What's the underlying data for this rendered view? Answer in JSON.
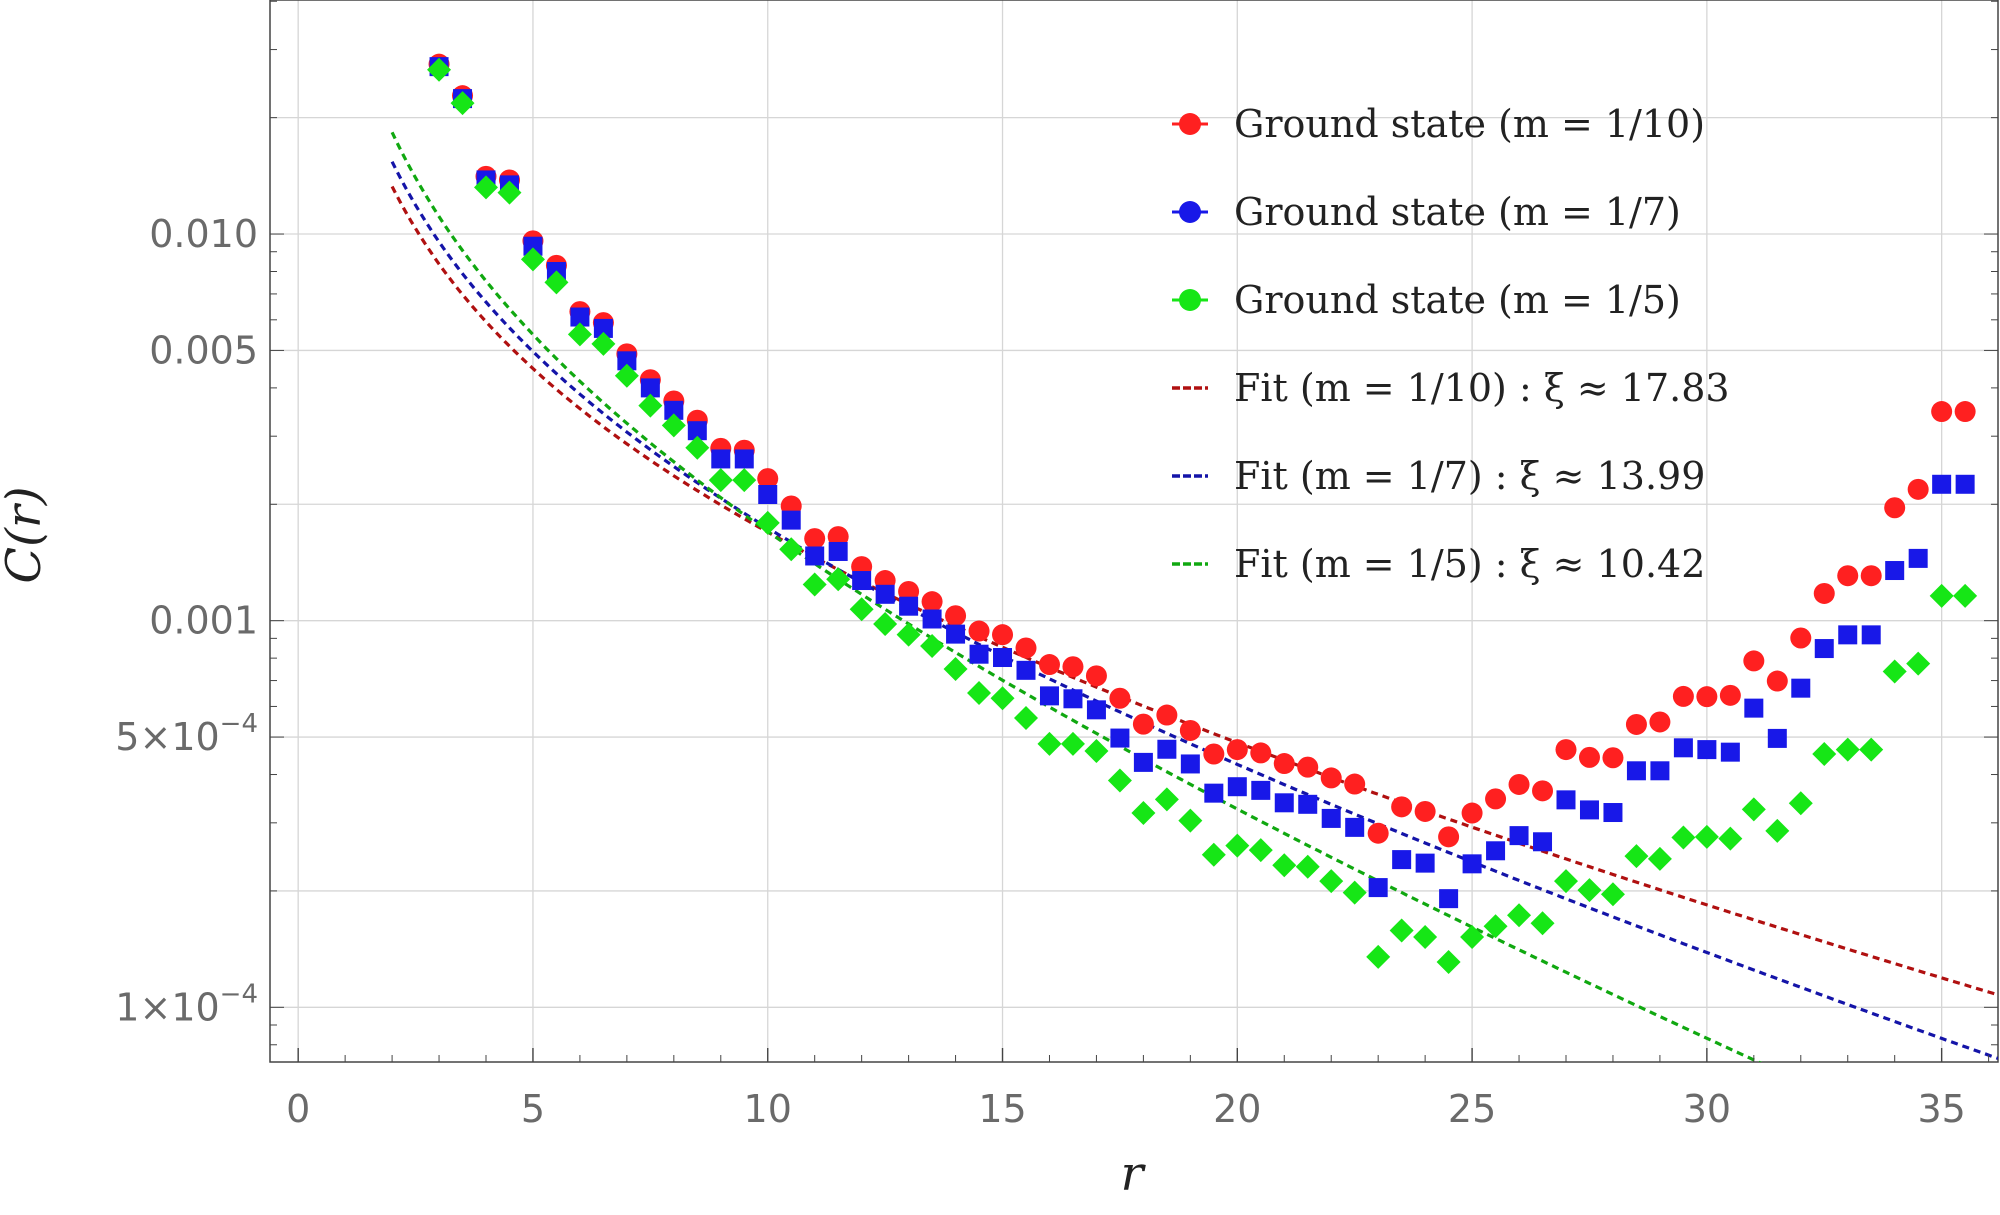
{
  "chart_data": {
    "type": "scatter",
    "title": "",
    "xlabel": "r",
    "ylabel": "C(r)",
    "xlim": [
      -0.6,
      36.2
    ],
    "ylim": [
      7.22e-05,
      0.0403
    ],
    "yscale": "log",
    "grid": true,
    "legend_position": "top-right",
    "x_ticks": [
      {
        "value": 0,
        "label": "0"
      },
      {
        "value": 5,
        "label": "5"
      },
      {
        "value": 10,
        "label": "10"
      },
      {
        "value": 15,
        "label": "15"
      },
      {
        "value": 20,
        "label": "20"
      },
      {
        "value": 25,
        "label": "25"
      },
      {
        "value": 30,
        "label": "30"
      },
      {
        "value": 35,
        "label": "35"
      }
    ],
    "y_ticks": [
      {
        "value": 0.01,
        "label": "0.010"
      },
      {
        "value": 0.005,
        "label": "0.005"
      },
      {
        "value": 0.001,
        "label": "0.001"
      },
      {
        "value": 0.0005,
        "label": "5×10",
        "exp": "−4"
      },
      {
        "value": 0.0001,
        "label": "1×10",
        "exp": "−4"
      }
    ],
    "series": [
      {
        "name": "Ground state (m = 1/10)",
        "legend_label": "Ground state (m = 1/10)",
        "marker": "circle",
        "color": "#ff2020",
        "x": [
          3.0,
          3.5,
          4.0,
          4.5,
          5.0,
          5.5,
          6.0,
          6.5,
          7.0,
          7.5,
          8.0,
          8.5,
          9.0,
          9.5,
          10.0,
          10.5,
          11.0,
          11.5,
          12.0,
          12.5,
          13.0,
          13.5,
          14.0,
          14.5,
          15.0,
          15.5,
          16.0,
          16.5,
          17.0,
          17.5,
          18.0,
          18.5,
          19.0,
          19.5,
          20.0,
          20.5,
          21.0,
          21.5,
          22.0,
          22.5,
          23.0,
          23.5,
          24.0,
          24.5,
          25.0,
          25.5,
          26.0,
          26.5,
          27.0,
          27.5,
          28.0,
          28.5,
          29.0,
          29.5,
          30.0,
          30.5,
          31.0,
          31.5,
          32.0,
          32.5,
          33.0,
          33.5,
          34.0,
          34.5,
          35.0,
          35.5
        ],
        "y": [
          0.0275,
          0.0228,
          0.0141,
          0.0138,
          0.0096,
          0.0083,
          0.0063,
          0.0059,
          0.0049,
          0.0042,
          0.0037,
          0.0033,
          0.00279,
          0.00276,
          0.00233,
          0.00198,
          0.00163,
          0.00165,
          0.00138,
          0.00127,
          0.00119,
          0.00112,
          0.00103,
          0.00094,
          0.00092,
          0.00085,
          0.00077,
          0.00076,
          0.00072,
          0.00063,
          0.00054,
          0.00057,
          0.00052,
          0.000452,
          0.000464,
          0.000455,
          0.000427,
          0.000418,
          0.000392,
          0.000378,
          0.000282,
          0.00033,
          0.000321,
          0.000276,
          0.000318,
          0.000346,
          0.000377,
          0.000363,
          0.000464,
          0.000443,
          0.000442,
          0.000539,
          0.000547,
          0.000637,
          0.000636,
          0.000641,
          0.000787,
          0.000698,
          0.000902,
          0.001176,
          0.001307,
          0.001307,
          0.001959,
          0.002186,
          0.003475,
          0.003475
        ]
      },
      {
        "name": "Ground state (m = 1/7)",
        "legend_label": "Ground state (m = 1/7)",
        "marker": "square",
        "color": "#1818e8",
        "x": [
          3.0,
          3.5,
          4.0,
          4.5,
          5.0,
          5.5,
          6.0,
          6.5,
          7.0,
          7.5,
          8.0,
          8.5,
          9.0,
          9.5,
          10.0,
          10.5,
          11.0,
          11.5,
          12.0,
          12.5,
          13.0,
          13.5,
          14.0,
          14.5,
          15.0,
          15.5,
          16.0,
          16.5,
          17.0,
          17.5,
          18.0,
          18.5,
          19.0,
          19.5,
          20.0,
          20.5,
          21.0,
          21.5,
          22.0,
          22.5,
          23.0,
          23.5,
          24.0,
          24.5,
          25.0,
          25.5,
          26.0,
          26.5,
          27.0,
          27.5,
          28.0,
          28.5,
          29.0,
          29.5,
          30.0,
          30.5,
          31.0,
          31.5,
          32.0,
          32.5,
          33.0,
          33.5,
          34.0,
          34.5,
          35.0,
          35.5
        ],
        "y": [
          0.0271,
          0.0224,
          0.0138,
          0.0134,
          0.0093,
          0.008,
          0.0061,
          0.0057,
          0.0047,
          0.004,
          0.0035,
          0.0031,
          0.00262,
          0.00262,
          0.00212,
          0.00182,
          0.00147,
          0.00151,
          0.00127,
          0.00117,
          0.00109,
          0.00101,
          0.000923,
          0.000819,
          0.000803,
          0.000744,
          0.000639,
          0.000628,
          0.000588,
          0.000497,
          0.00043,
          0.000465,
          0.000426,
          0.000358,
          0.000372,
          0.000364,
          0.000338,
          0.000335,
          0.000308,
          0.000292,
          0.000204,
          0.000241,
          0.000236,
          0.000191,
          0.000235,
          0.000254,
          0.000278,
          0.000268,
          0.000344,
          0.000324,
          0.000319,
          0.000409,
          0.000409,
          0.000469,
          0.000464,
          0.000457,
          0.000594,
          0.000496,
          0.000669,
          0.000847,
          0.000919,
          0.000919,
          0.001348,
          0.001449,
          0.002253,
          0.002253
        ]
      },
      {
        "name": "Ground state (m = 1/5)",
        "legend_label": "Ground state (m = 1/5)",
        "marker": "diamond",
        "color": "#16e616",
        "x": [
          3.0,
          3.5,
          4.0,
          4.5,
          5.0,
          5.5,
          6.0,
          6.5,
          7.0,
          7.5,
          8.0,
          8.5,
          9.0,
          9.5,
          10.0,
          10.5,
          11.0,
          11.5,
          12.0,
          12.5,
          13.0,
          13.5,
          14.0,
          14.5,
          15.0,
          15.5,
          16.0,
          16.5,
          17.0,
          17.5,
          18.0,
          18.5,
          19.0,
          19.5,
          20.0,
          20.5,
          21.0,
          21.5,
          22.0,
          22.5,
          23.0,
          23.5,
          24.0,
          24.5,
          25.0,
          25.5,
          26.0,
          26.5,
          27.0,
          27.5,
          28.0,
          28.5,
          29.0,
          29.5,
          30.0,
          30.5,
          31.0,
          31.5,
          32.0,
          32.5,
          33.0,
          33.5,
          34.0,
          34.5,
          35.0,
          35.5
        ],
        "y": [
          0.0266,
          0.0218,
          0.0132,
          0.0128,
          0.0086,
          0.0075,
          0.0055,
          0.0052,
          0.0043,
          0.0036,
          0.0032,
          0.0028,
          0.00231,
          0.00231,
          0.00179,
          0.00153,
          0.00124,
          0.00128,
          0.00107,
          0.00098,
          0.00092,
          0.00086,
          0.00075,
          0.00065,
          0.00063,
          0.00056,
          0.00048,
          0.00048,
          0.00046,
          0.000386,
          0.000318,
          0.000345,
          0.000304,
          0.000248,
          0.000262,
          0.000255,
          0.000233,
          0.000231,
          0.000212,
          0.000198,
          0.000135,
          0.000158,
          0.000152,
          0.000131,
          0.000152,
          0.000162,
          0.000173,
          0.000165,
          0.000212,
          0.000201,
          0.000196,
          0.000246,
          0.000242,
          0.000275,
          0.000276,
          0.000273,
          0.000325,
          0.000286,
          0.000337,
          0.000452,
          0.000464,
          0.000464,
          0.000739,
          0.000774,
          0.001159,
          0.001159
        ]
      }
    ],
    "fits": [
      {
        "name": "Fit (m = 1/10)",
        "legend_label": "Fit (m = 1/10) :  ξ ≈ 17.83",
        "xi": 17.83,
        "color": "#b01010",
        "A": 0.0297,
        "x_start": 2.0,
        "x_end": 36.2
      },
      {
        "name": "Fit (m = 1/7)",
        "legend_label": "Fit (m = 1/7) :  ξ ≈ 13.99",
        "xi": 13.99,
        "color": "#1414a8",
        "A": 0.0355,
        "x_start": 2.0,
        "x_end": 36.2
      },
      {
        "name": "Fit (m = 1/5)",
        "legend_label": "Fit (m = 1/5) :  ξ ≈ 10.42",
        "xi": 10.42,
        "color": "#10a810",
        "A": 0.0444,
        "x_start": 2.0,
        "x_end": 36.2
      }
    ]
  }
}
